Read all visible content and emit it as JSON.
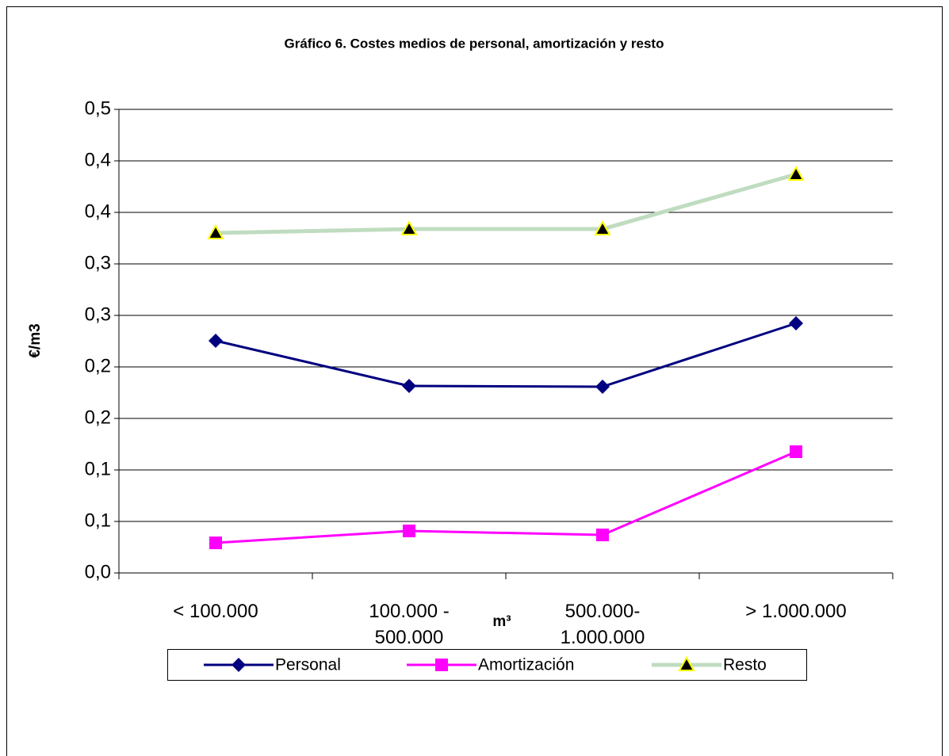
{
  "chart_data": {
    "type": "line",
    "title": "Gráfico 6. Costes medios de personal, amortización y resto",
    "y_label": "€/m3",
    "x_label": "m³",
    "categories": [
      "< 100.000",
      "100.000 -\n500.000",
      "500.000-\n1.000.000",
      "> 1.000.000"
    ],
    "series": [
      {
        "name": "Personal",
        "color": "#000080",
        "marker": "diamond",
        "values": [
          0.2254,
          0.1815,
          0.1808,
          0.2423
        ]
      },
      {
        "name": "Amortización",
        "color": "#ff00ff",
        "marker": "square",
        "values": [
          0.0292,
          0.0408,
          0.0369,
          0.1177
        ]
      },
      {
        "name": "Resto",
        "color": "#c0dcc0",
        "marker": "triangle",
        "values": [
          0.33,
          0.3338,
          0.3338,
          0.3869
        ]
      }
    ],
    "ylim": [
      0,
      0.45
    ],
    "yticks": [
      {
        "value": 0,
        "label": "0,0"
      },
      {
        "value": 0.05,
        "label": "0,1"
      },
      {
        "value": 0.1,
        "label": "0,1"
      },
      {
        "value": 0.15,
        "label": "0,2"
      },
      {
        "value": 0.2,
        "label": "0,2"
      },
      {
        "value": 0.25,
        "label": "0,3"
      },
      {
        "value": 0.3,
        "label": "0,3"
      },
      {
        "value": 0.35,
        "label": "0,4"
      },
      {
        "value": 0.4,
        "label": "0,4"
      },
      {
        "value": 0.45,
        "label": "0,5"
      }
    ],
    "grid": true,
    "legend": "bottom"
  }
}
